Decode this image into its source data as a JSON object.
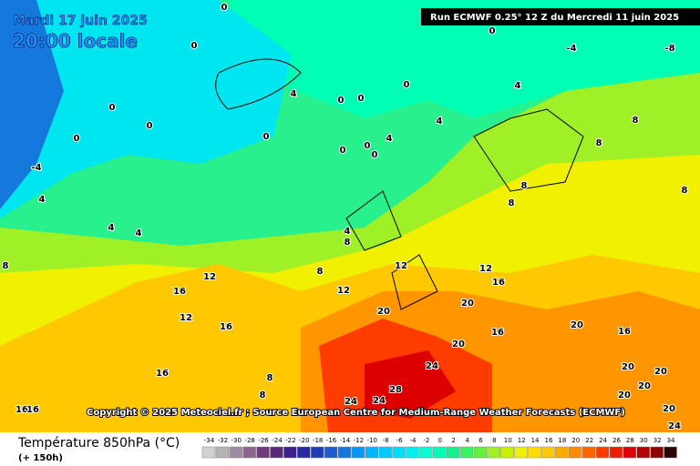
{
  "header": {
    "date": "Mardi 17 juin 2025",
    "time": "20:00 locale",
    "run": "Run ECMWF 0.25° 12 Z du Mercredi 11 juin 2025"
  },
  "copyright": "Copyright © 2025 Meteociel.fr ; Source European Centre for Medium-Range Weather Forecasts (ECMWF)",
  "legend": {
    "title": "Température 850hPa (°C)",
    "subtitle": "(+ 150h)",
    "values": [
      -34,
      -32,
      -30,
      -28,
      -26,
      -24,
      -22,
      -20,
      -18,
      -16,
      -14,
      -12,
      -10,
      -8,
      -6,
      -4,
      -2,
      0,
      2,
      4,
      6,
      8,
      10,
      12,
      14,
      16,
      18,
      20,
      22,
      24,
      26,
      28,
      30,
      32,
      34
    ],
    "colors": [
      "#d2d2d2",
      "#b4b4b4",
      "#a08ca0",
      "#8c648c",
      "#6e3c78",
      "#5a2878",
      "#3c1e8c",
      "#2828a0",
      "#1e3cb4",
      "#1e5ac8",
      "#1478dc",
      "#0a96f0",
      "#00b4ff",
      "#00c8ff",
      "#00dcff",
      "#00f0f0",
      "#00ffd2",
      "#00ffb4",
      "#14f08c",
      "#3cf064",
      "#64f03c",
      "#a0f028",
      "#c8f000",
      "#f0f000",
      "#ffdc00",
      "#ffc800",
      "#ffaa00",
      "#ff8c00",
      "#ff6400",
      "#ff3c00",
      "#f01e00",
      "#dc0000",
      "#b40000",
      "#8c0000",
      "#300000"
    ]
  },
  "map": {
    "labels": [
      "0",
      "0",
      "4",
      "0",
      "0",
      "0",
      "0",
      "0",
      "0",
      "0",
      "4",
      "4",
      "0",
      "0",
      "0",
      "-4",
      "4",
      "4",
      "4",
      "4",
      "8",
      "8",
      "12",
      "12",
      "12",
      "16",
      "12",
      "16",
      "16",
      "8",
      "8",
      "20",
      "20",
      "20",
      "16",
      "12",
      "16",
      "24",
      "28",
      "24",
      "24",
      "20",
      "16",
      "20",
      "20",
      "20",
      "20",
      "20",
      "24",
      "8",
      "8",
      "8",
      "8",
      "8",
      "4",
      "-4",
      "-8",
      "0",
      "8",
      "16",
      "16"
    ]
  }
}
